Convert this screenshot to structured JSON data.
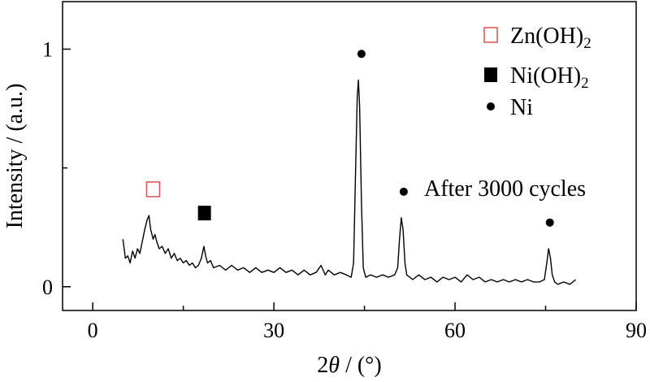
{
  "chart_data": {
    "type": "line",
    "xlabel_prefix": "2",
    "xlabel_var": "θ",
    "xlabel_suffix": " / (°)",
    "ylabel": "Intensity / (a.u.)",
    "xlim": [
      -5,
      90
    ],
    "ylim": [
      -0.1,
      1.2
    ],
    "x_ticks": [
      0,
      30,
      60,
      90
    ],
    "y_ticks": [
      0,
      1
    ],
    "x_minor_step": 15,
    "y_minor_step": 0.5,
    "grid": false,
    "legend": {
      "placement": "top-right",
      "items": [
        {
          "marker": "open-square",
          "label": "Zn(OH)",
          "sub": "2",
          "color": "#d9534f"
        },
        {
          "marker": "filled-square",
          "label": "Ni(OH)",
          "sub": "2",
          "color": "#000000"
        },
        {
          "marker": "filled-circle",
          "label": "Ni",
          "sub": "",
          "color": "#000000"
        }
      ]
    },
    "annotation": "After 3000 cycles",
    "series": [
      {
        "color": "#000000",
        "points": [
          [
            5.0,
            0.2
          ],
          [
            5.4,
            0.12
          ],
          [
            5.8,
            0.13
          ],
          [
            6.2,
            0.1
          ],
          [
            6.6,
            0.15
          ],
          [
            7.0,
            0.12
          ],
          [
            7.4,
            0.16
          ],
          [
            7.8,
            0.14
          ],
          [
            8.2,
            0.19
          ],
          [
            8.6,
            0.24
          ],
          [
            9.0,
            0.28
          ],
          [
            9.3,
            0.3
          ],
          [
            9.6,
            0.24
          ],
          [
            10.0,
            0.2
          ],
          [
            10.3,
            0.22
          ],
          [
            10.6,
            0.19
          ],
          [
            11.0,
            0.16
          ],
          [
            11.5,
            0.17
          ],
          [
            12.0,
            0.14
          ],
          [
            12.5,
            0.16
          ],
          [
            13.0,
            0.12
          ],
          [
            13.5,
            0.14
          ],
          [
            14.0,
            0.11
          ],
          [
            14.5,
            0.12
          ],
          [
            15.0,
            0.1
          ],
          [
            15.5,
            0.11
          ],
          [
            16.0,
            0.09
          ],
          [
            16.5,
            0.1
          ],
          [
            17.0,
            0.08
          ],
          [
            17.5,
            0.09
          ],
          [
            18.0,
            0.12
          ],
          [
            18.4,
            0.17
          ],
          [
            18.7,
            0.13
          ],
          [
            19.0,
            0.1
          ],
          [
            19.5,
            0.11
          ],
          [
            20.0,
            0.08
          ],
          [
            21.0,
            0.09
          ],
          [
            22.0,
            0.07
          ],
          [
            23.0,
            0.09
          ],
          [
            24.0,
            0.07
          ],
          [
            25.0,
            0.08
          ],
          [
            26.0,
            0.06
          ],
          [
            27.0,
            0.08
          ],
          [
            28.0,
            0.06
          ],
          [
            29.0,
            0.07
          ],
          [
            30.0,
            0.06
          ],
          [
            31.0,
            0.08
          ],
          [
            32.0,
            0.06
          ],
          [
            33.0,
            0.07
          ],
          [
            34.0,
            0.05
          ],
          [
            35.0,
            0.07
          ],
          [
            36.0,
            0.05
          ],
          [
            37.0,
            0.06
          ],
          [
            37.8,
            0.09
          ],
          [
            38.5,
            0.05
          ],
          [
            39.0,
            0.07
          ],
          [
            40.0,
            0.05
          ],
          [
            41.0,
            0.06
          ],
          [
            42.0,
            0.05
          ],
          [
            42.8,
            0.04
          ],
          [
            43.2,
            0.1
          ],
          [
            43.5,
            0.45
          ],
          [
            43.8,
            0.8
          ],
          [
            44.0,
            0.87
          ],
          [
            44.2,
            0.76
          ],
          [
            44.5,
            0.35
          ],
          [
            44.8,
            0.08
          ],
          [
            45.2,
            0.04
          ],
          [
            46.0,
            0.05
          ],
          [
            47.0,
            0.04
          ],
          [
            48.0,
            0.05
          ],
          [
            49.0,
            0.04
          ],
          [
            50.0,
            0.05
          ],
          [
            50.5,
            0.08
          ],
          [
            50.8,
            0.2
          ],
          [
            51.1,
            0.29
          ],
          [
            51.4,
            0.24
          ],
          [
            51.7,
            0.1
          ],
          [
            52.0,
            0.05
          ],
          [
            53.0,
            0.03
          ],
          [
            54.0,
            0.05
          ],
          [
            55.0,
            0.03
          ],
          [
            56.0,
            0.04
          ],
          [
            57.0,
            0.02
          ],
          [
            58.0,
            0.04
          ],
          [
            59.0,
            0.03
          ],
          [
            60.0,
            0.04
          ],
          [
            61.0,
            0.02
          ],
          [
            62.0,
            0.05
          ],
          [
            63.0,
            0.03
          ],
          [
            64.0,
            0.04
          ],
          [
            65.0,
            0.02
          ],
          [
            66.0,
            0.03
          ],
          [
            67.0,
            0.02
          ],
          [
            68.0,
            0.03
          ],
          [
            69.0,
            0.02
          ],
          [
            70.0,
            0.03
          ],
          [
            71.0,
            0.02
          ],
          [
            72.0,
            0.03
          ],
          [
            73.0,
            0.02
          ],
          [
            74.0,
            0.02
          ],
          [
            74.8,
            0.03
          ],
          [
            75.2,
            0.1
          ],
          [
            75.5,
            0.16
          ],
          [
            75.8,
            0.12
          ],
          [
            76.1,
            0.05
          ],
          [
            76.5,
            0.02
          ],
          [
            77.0,
            0.01
          ],
          [
            78.0,
            0.02
          ],
          [
            79.0,
            0.01
          ],
          [
            80.0,
            0.03
          ]
        ]
      }
    ],
    "markers": [
      {
        "type": "open-square",
        "x": 10.0,
        "y": 0.41,
        "color": "#d9534f"
      },
      {
        "type": "filled-square",
        "x": 18.5,
        "y": 0.31,
        "color": "#000000"
      },
      {
        "type": "filled-circle",
        "x": 44.5,
        "y": 0.98,
        "color": "#000000"
      },
      {
        "type": "filled-circle",
        "x": 51.5,
        "y": 0.4,
        "color": "#000000"
      },
      {
        "type": "filled-circle",
        "x": 75.7,
        "y": 0.27,
        "color": "#000000"
      }
    ]
  }
}
